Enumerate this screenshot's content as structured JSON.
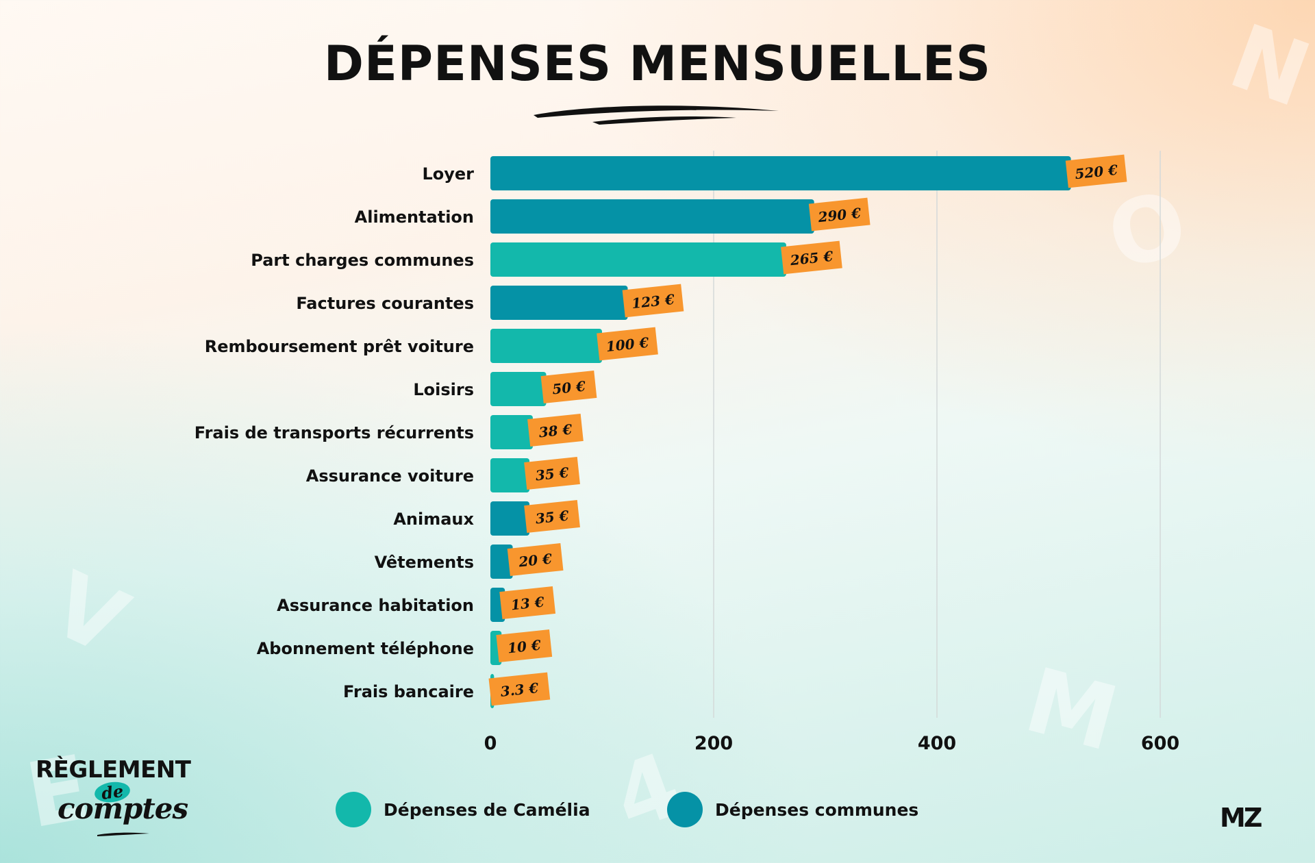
{
  "title": "DÉPENSES MENSUELLES",
  "colors": {
    "camelia": "#13b8ab",
    "communes": "#0592a6",
    "label_bg": "#f8962e",
    "grid": "#d4d9d9",
    "text": "#111111"
  },
  "chart_data": {
    "type": "bar",
    "orientation": "horizontal",
    "title": "DÉPENSES MENSUELLES",
    "xlim": [
      0,
      700
    ],
    "xticks": [
      0,
      200,
      400,
      600
    ],
    "xtick_labels": [
      "0",
      "200",
      "400",
      "600"
    ],
    "grid": true,
    "legend_position": "bottom",
    "categories": [
      "Loyer",
      "Alimentation",
      "Part charges communes",
      "Factures courantes",
      "Remboursement prêt voiture",
      "Loisirs",
      "Frais de transports récurrents",
      "Assurance voiture",
      "Animaux",
      "Vêtements",
      "Assurance habitation",
      "Abonnement téléphone",
      "Frais bancaire"
    ],
    "values": [
      520,
      290,
      265,
      123,
      100,
      50,
      38,
      35,
      35,
      20,
      13,
      10,
      3.3
    ],
    "value_labels": [
      "520 €",
      "290 €",
      "265 €",
      "123 €",
      "100 €",
      "50 €",
      "38 €",
      "35 €",
      "35 €",
      "20 €",
      "13 €",
      "10 €",
      "3.3 €"
    ],
    "groups": [
      "communes",
      "communes",
      "camelia",
      "communes",
      "camelia",
      "camelia",
      "camelia",
      "camelia",
      "communes",
      "communes",
      "communes",
      "camelia",
      "camelia"
    ],
    "series": [
      {
        "key": "camelia",
        "name": "Dépenses de Camélia"
      },
      {
        "key": "communes",
        "name": "Dépenses communes"
      }
    ]
  },
  "legend": {
    "camelia_label": "Dépenses de Camélia",
    "communes_label": "Dépenses communes"
  },
  "logo": {
    "line1": "RÈGLEMENT",
    "line2": "de",
    "line3": "comptes"
  },
  "brand": "MZ",
  "icons": {
    "title_underline": "brush-stroke-icon",
    "logo_underline": "brush-stroke-icon"
  }
}
